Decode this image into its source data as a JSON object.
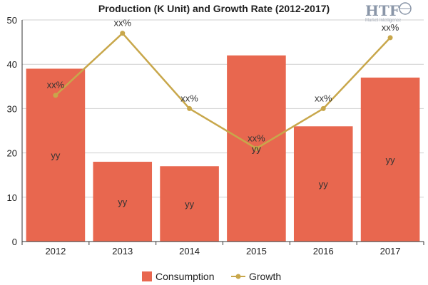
{
  "chart_data": {
    "type": "bar",
    "title": "Production (K Unit) and Growth Rate (2012-2017)",
    "categories": [
      "2012",
      "2013",
      "2014",
      "2015",
      "2016",
      "2017"
    ],
    "series": [
      {
        "name": "Consumption",
        "type": "bar",
        "values": [
          39,
          18,
          17,
          42,
          26,
          37
        ],
        "labels": [
          "yy",
          "yy",
          "yy",
          "yy",
          "yy",
          "yy"
        ],
        "color": "#e8674f"
      },
      {
        "name": "Growth",
        "type": "line",
        "values": [
          33,
          47,
          30,
          21,
          30,
          46
        ],
        "labels": [
          "xx%",
          "xx%",
          "xx%",
          "xx%",
          "xx%",
          "xx%"
        ],
        "color": "#c8a74b"
      }
    ],
    "ylim": [
      0,
      50
    ],
    "yticks": [
      "0",
      "10",
      "20",
      "30",
      "40",
      "50"
    ],
    "grid": true,
    "legend": "bottom-center"
  },
  "logo": {
    "text": "HTF",
    "subtitle": "Market Intelligence"
  }
}
